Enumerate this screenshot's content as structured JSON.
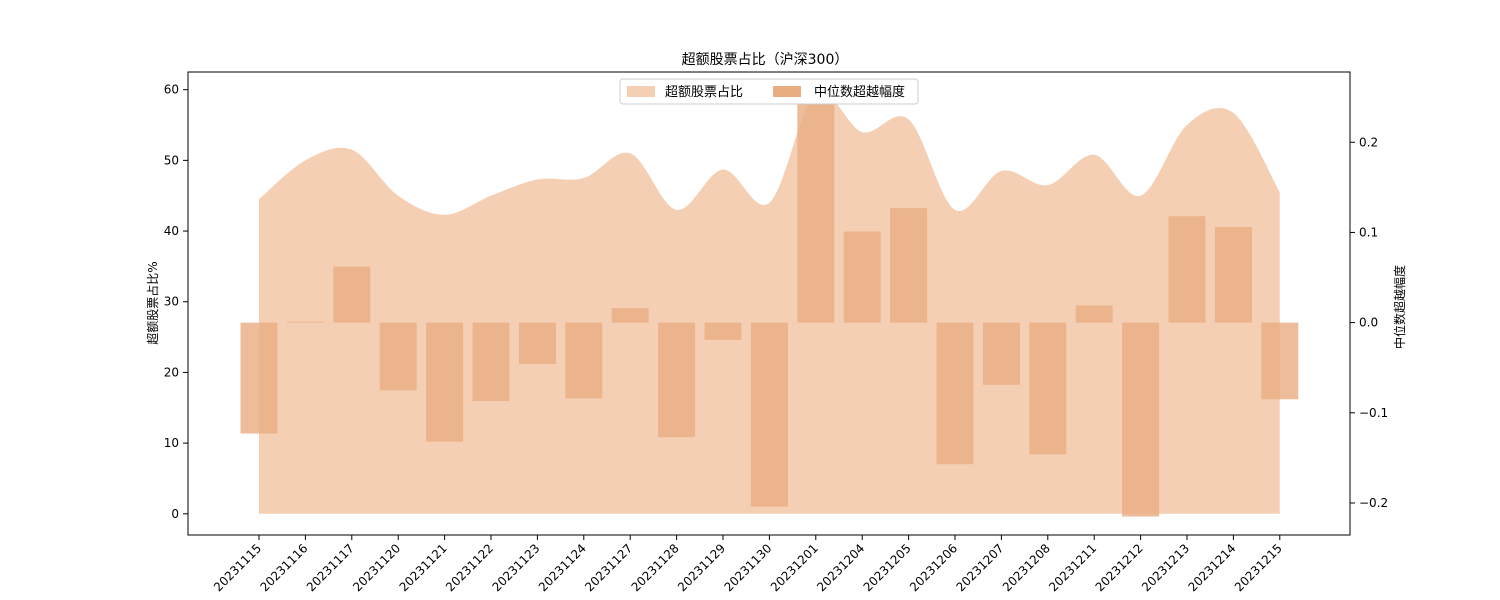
{
  "chart_data": {
    "type": "bar",
    "title": "超额股票占比（沪深300）",
    "categories": [
      "20231115",
      "20231116",
      "20231117",
      "20231120",
      "20231121",
      "20231122",
      "20231123",
      "20231124",
      "20231127",
      "20231128",
      "20231129",
      "20231130",
      "20231201",
      "20231204",
      "20231205",
      "20231206",
      "20231207",
      "20231208",
      "20231211",
      "20231212",
      "20231213",
      "20231214",
      "20231215"
    ],
    "series": [
      {
        "name": "超额股票占比",
        "axis": "left",
        "type": "area",
        "color": "#f5cfb3",
        "values": [
          44.5,
          50.0,
          51.5,
          45.0,
          42.3,
          45.0,
          47.3,
          47.5,
          51.0,
          43.0,
          48.7,
          44.0,
          59.5,
          54.0,
          55.8,
          43.0,
          48.5,
          46.5,
          50.8,
          45.0,
          55.0,
          56.7,
          45.5
        ]
      },
      {
        "name": "中位数超越幅度",
        "axis": "right",
        "type": "bar",
        "color": "#e8ad82",
        "values": [
          -0.123,
          0.001,
          0.062,
          -0.075,
          -0.132,
          -0.087,
          -0.046,
          -0.084,
          0.016,
          -0.127,
          -0.019,
          -0.204,
          0.25,
          0.101,
          0.127,
          -0.157,
          -0.069,
          -0.146,
          0.019,
          -0.215,
          0.118,
          0.106,
          -0.085
        ]
      }
    ],
    "ylabel": "超额股票占比%",
    "y2label": "中位数超越幅度",
    "ylim": [
      -3,
      62.5
    ],
    "y2lim": [
      -0.2355,
      0.2779
    ],
    "yticks": [
      0,
      10,
      20,
      30,
      40,
      50,
      60
    ],
    "y2ticks": [
      -0.2,
      -0.1,
      0.0,
      0.1,
      0.2
    ],
    "y2tick_labels": [
      "−0.2",
      "−0.1",
      "0.0",
      "0.1",
      "0.2"
    ],
    "legend": "top-center",
    "grid": false
  }
}
